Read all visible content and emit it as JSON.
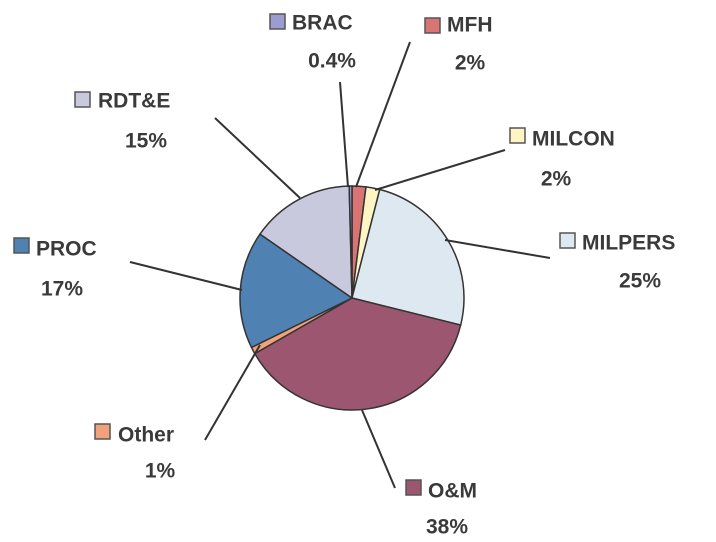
{
  "chart_data": {
    "type": "pie",
    "categories": [
      "MFH",
      "MILCON",
      "MILPERS",
      "O&M",
      "Other",
      "PROC",
      "RDT&E",
      "BRAC"
    ],
    "values": [
      2,
      2,
      25,
      38,
      1,
      17,
      15,
      0.4
    ],
    "value_labels": [
      "2%",
      "2%",
      "25%",
      "38%",
      "1%",
      "17%",
      "15%",
      "0.4%"
    ],
    "colors": [
      "#d87474",
      "#fff5c4",
      "#dde8f1",
      "#9c5670",
      "#f2a27a",
      "#4f82b3",
      "#c9c9dd",
      "#9b9ccf"
    ]
  }
}
